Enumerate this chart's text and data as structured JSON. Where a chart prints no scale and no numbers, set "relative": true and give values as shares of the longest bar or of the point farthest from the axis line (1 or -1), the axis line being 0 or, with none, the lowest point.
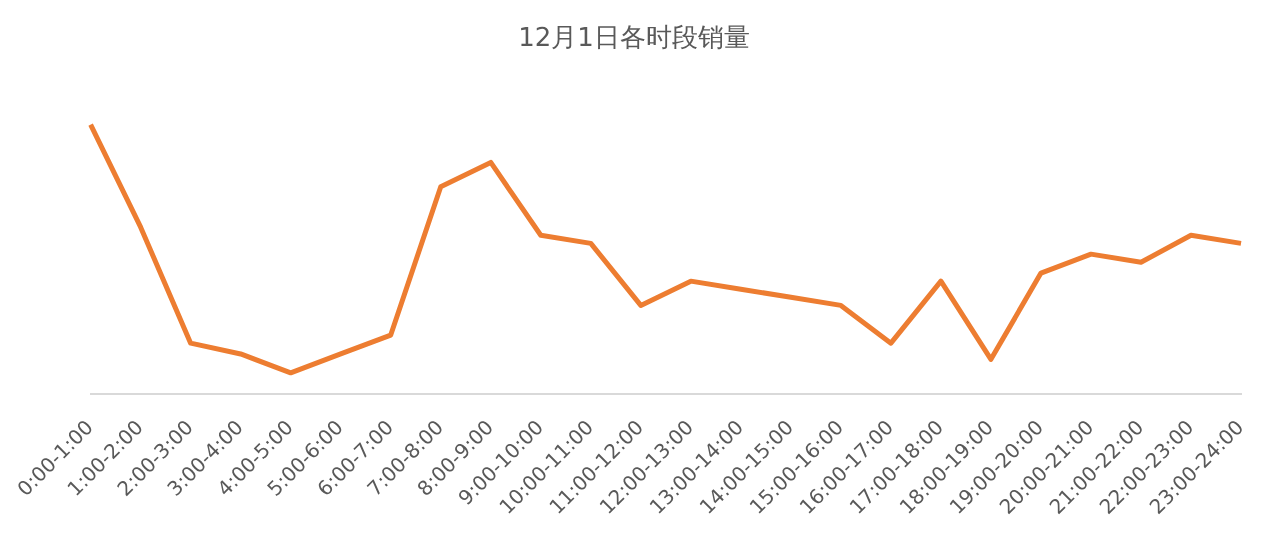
{
  "chart_data": {
    "type": "line",
    "title": "12月1日各时段销量",
    "relative": true,
    "legend": false,
    "grid": false,
    "marker": "none",
    "line_style": "solid",
    "categories": [
      "0:00-1:00",
      "1:00-2:00",
      "2:00-3:00",
      "3:00-4:00",
      "4:00-5:00",
      "5:00-6:00",
      "6:00-7:00",
      "7:00-8:00",
      "8:00-9:00",
      "9:00-10:00",
      "10:00-11:00",
      "11:00-12:00",
      "12:00-13:00",
      "13:00-14:00",
      "14:00-15:00",
      "15:00-16:00",
      "16:00-17:00",
      "17:00-18:00",
      "18:00-19:00",
      "19:00-20:00",
      "20:00-21:00",
      "21:00-22:00",
      "22:00-23:00",
      "23:00-24:00"
    ],
    "series": [
      {
        "color": "#ed7d31",
        "values": [
          1,
          0.62,
          0.19,
          0.15,
          0.08,
          0.15,
          0.22,
          0.77,
          0.86,
          0.59,
          0.56,
          0.33,
          0.42,
          0.39,
          0.36,
          0.33,
          0.19,
          0.42,
          0.13,
          0.45,
          0.52,
          0.49,
          0.59,
          0.56
        ]
      }
    ]
  }
}
